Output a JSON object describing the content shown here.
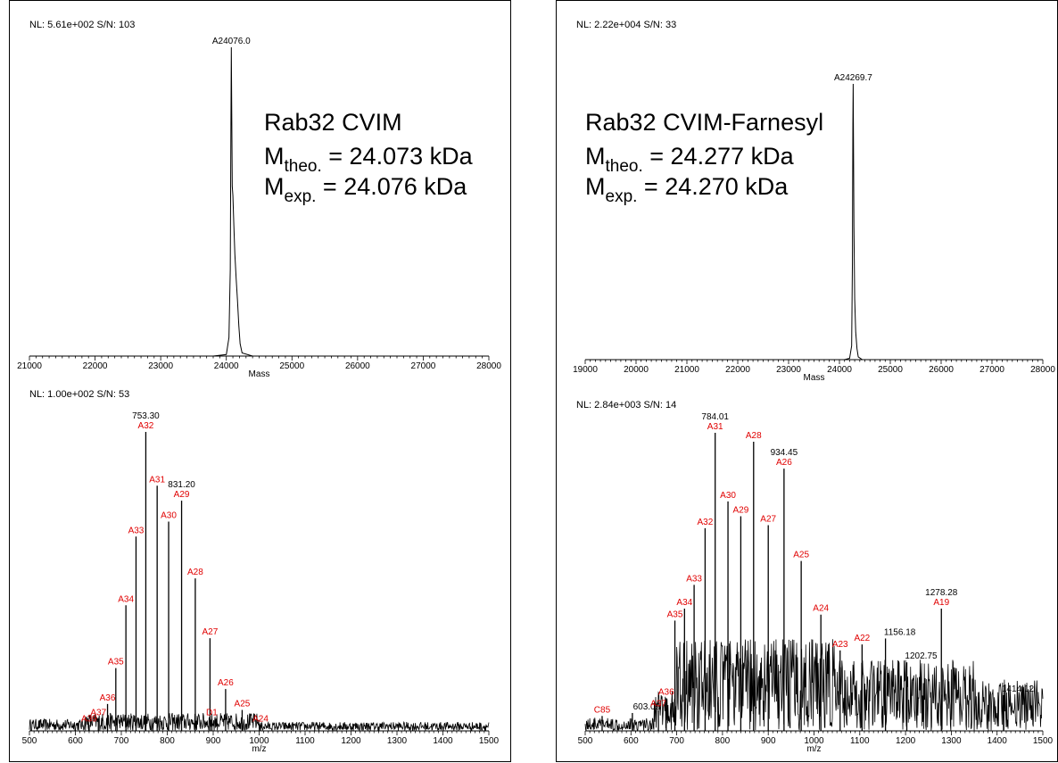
{
  "colors": {
    "axis": "#000000",
    "trace": "#000000",
    "ion_label": "#e00000",
    "value_label": "#000000"
  },
  "chart_data": [
    {
      "type": "line",
      "panel": "left-deconvoluted",
      "header": "NL: 5.61e+002  S/N: 103",
      "xlabel": "Mass",
      "xlim": [
        21000,
        28000
      ],
      "xticks": [
        21000,
        22000,
        23000,
        24000,
        25000,
        26000,
        27000,
        28000
      ],
      "ylim": [
        0,
        100
      ],
      "peak_label": "A24076.0",
      "x": [
        21000,
        23800,
        24000,
        24040,
        24060,
        24070,
        24076,
        24082,
        24090,
        24100,
        24115,
        24130,
        24150,
        24170,
        24190,
        24210,
        24240,
        24400,
        28000
      ],
      "y": [
        0,
        0,
        0.5,
        6,
        28,
        75,
        100,
        80,
        55,
        52,
        42,
        33,
        25,
        18,
        10,
        4,
        1,
        0,
        0
      ],
      "annotation": {
        "title": "Rab32 CVIM",
        "m_theo_main": "M",
        "m_theo_sub": "theo.",
        "m_theo_value": " = 24.073 kDa",
        "m_exp_main": "M",
        "m_exp_sub": "exp.",
        "m_exp_value": " = 24.076 kDa"
      }
    },
    {
      "type": "line",
      "panel": "left-raw",
      "header": "NL: 1.00e+002  S/N: 53",
      "xlabel": "m/z",
      "xlim": [
        500,
        1500
      ],
      "xticks": [
        500,
        600,
        700,
        800,
        900,
        1000,
        1100,
        1200,
        1300,
        1400,
        1500
      ],
      "ylim": [
        0,
        100
      ],
      "peaks": [
        {
          "x": 630,
          "y": 2,
          "ion": "A39",
          "value": ""
        },
        {
          "x": 650,
          "y": 4,
          "ion": "A37",
          "value": ""
        },
        {
          "x": 670,
          "y": 9,
          "ion": "A36",
          "value": ""
        },
        {
          "x": 688,
          "y": 21,
          "ion": "A35",
          "value": ""
        },
        {
          "x": 710,
          "y": 42,
          "ion": "A34",
          "value": ""
        },
        {
          "x": 732,
          "y": 65,
          "ion": "A33",
          "value": ""
        },
        {
          "x": 753.3,
          "y": 100,
          "ion": "A32",
          "value": "753.30"
        },
        {
          "x": 778,
          "y": 82,
          "ion": "A31",
          "value": ""
        },
        {
          "x": 803,
          "y": 70,
          "ion": "A30",
          "value": ""
        },
        {
          "x": 831.2,
          "y": 77,
          "ion": "A29",
          "value": "831.20"
        },
        {
          "x": 861,
          "y": 51,
          "ion": "A28",
          "value": ""
        },
        {
          "x": 893,
          "y": 31,
          "ion": "A27",
          "value": ""
        },
        {
          "x": 897,
          "y": 4,
          "ion": "D1",
          "value": ""
        },
        {
          "x": 927,
          "y": 14,
          "ion": "A26",
          "value": ""
        },
        {
          "x": 963,
          "y": 7,
          "ion": "A25",
          "value": ""
        },
        {
          "x": 1003,
          "y": 2,
          "ion": "A24",
          "value": ""
        }
      ]
    },
    {
      "type": "line",
      "panel": "right-deconvoluted",
      "header": "NL: 2.22e+004  S/N: 33",
      "xlabel": "Mass",
      "xlim": [
        19000,
        28000
      ],
      "xticks": [
        19000,
        20000,
        21000,
        22000,
        23000,
        24000,
        25000,
        26000,
        27000,
        28000
      ],
      "ylim": [
        0,
        100
      ],
      "peak_label": "A24269.7",
      "x": [
        19000,
        24100,
        24200,
        24240,
        24255,
        24264,
        24270,
        24276,
        24285,
        24300,
        24320,
        24345,
        24370,
        24450,
        28000
      ],
      "y": [
        0,
        0,
        0.5,
        5,
        35,
        85,
        100,
        80,
        48,
        22,
        10,
        4,
        1,
        0,
        0
      ],
      "annotation": {
        "title": "Rab32 CVIM-Farnesyl",
        "m_theo_main": "M",
        "m_theo_sub": "theo.",
        "m_theo_value": " = 24.277 kDa",
        "m_exp_main": "M",
        "m_exp_sub": "exp.",
        "m_exp_value": " = 24.270 kDa"
      }
    },
    {
      "type": "line",
      "panel": "right-raw",
      "header": "NL: 2.84e+003  S/N: 14",
      "xlabel": "m/z",
      "xlim": [
        500,
        1500
      ],
      "xticks": [
        500,
        600,
        700,
        800,
        900,
        1000,
        1100,
        1200,
        1300,
        1400,
        1500
      ],
      "ylim": [
        0,
        100
      ],
      "peaks": [
        {
          "x": 537,
          "y": 5,
          "ion": "C85",
          "value": ""
        },
        {
          "x": 603.09,
          "y": 6,
          "ion": "",
          "value": "603.09"
        },
        {
          "x": 660,
          "y": 7,
          "ion": "A37",
          "value": ""
        },
        {
          "x": 677,
          "y": 11,
          "ion": "A36",
          "value": ""
        },
        {
          "x": 696,
          "y": 37,
          "ion": "A35",
          "value": ""
        },
        {
          "x": 717,
          "y": 41,
          "ion": "A34",
          "value": ""
        },
        {
          "x": 738,
          "y": 49,
          "ion": "A33",
          "value": ""
        },
        {
          "x": 762,
          "y": 68,
          "ion": "A32",
          "value": ""
        },
        {
          "x": 784.01,
          "y": 100,
          "ion": "A31",
          "value": "784.01"
        },
        {
          "x": 812,
          "y": 77,
          "ion": "A30",
          "value": ""
        },
        {
          "x": 840,
          "y": 72,
          "ion": "A29",
          "value": ""
        },
        {
          "x": 868,
          "y": 97,
          "ion": "A28",
          "value": ""
        },
        {
          "x": 900,
          "y": 69,
          "ion": "A27",
          "value": ""
        },
        {
          "x": 934.45,
          "y": 88,
          "ion": "A26",
          "value": "934.45"
        },
        {
          "x": 972,
          "y": 57,
          "ion": "A25",
          "value": ""
        },
        {
          "x": 1015,
          "y": 39,
          "ion": "A24",
          "value": ""
        },
        {
          "x": 1057,
          "y": 27,
          "ion": "A23",
          "value": ""
        },
        {
          "x": 1105,
          "y": 29,
          "ion": "A22",
          "value": ""
        },
        {
          "x": 1156.18,
          "y": 31,
          "ion": "",
          "value": "1156.18"
        },
        {
          "x": 1202.75,
          "y": 23,
          "ion": "",
          "value": "1202.75"
        },
        {
          "x": 1278.28,
          "y": 41,
          "ion": "A19",
          "value": "1278.28"
        },
        {
          "x": 1414.12,
          "y": 12,
          "ion": "",
          "value": "1414.12"
        }
      ]
    }
  ]
}
